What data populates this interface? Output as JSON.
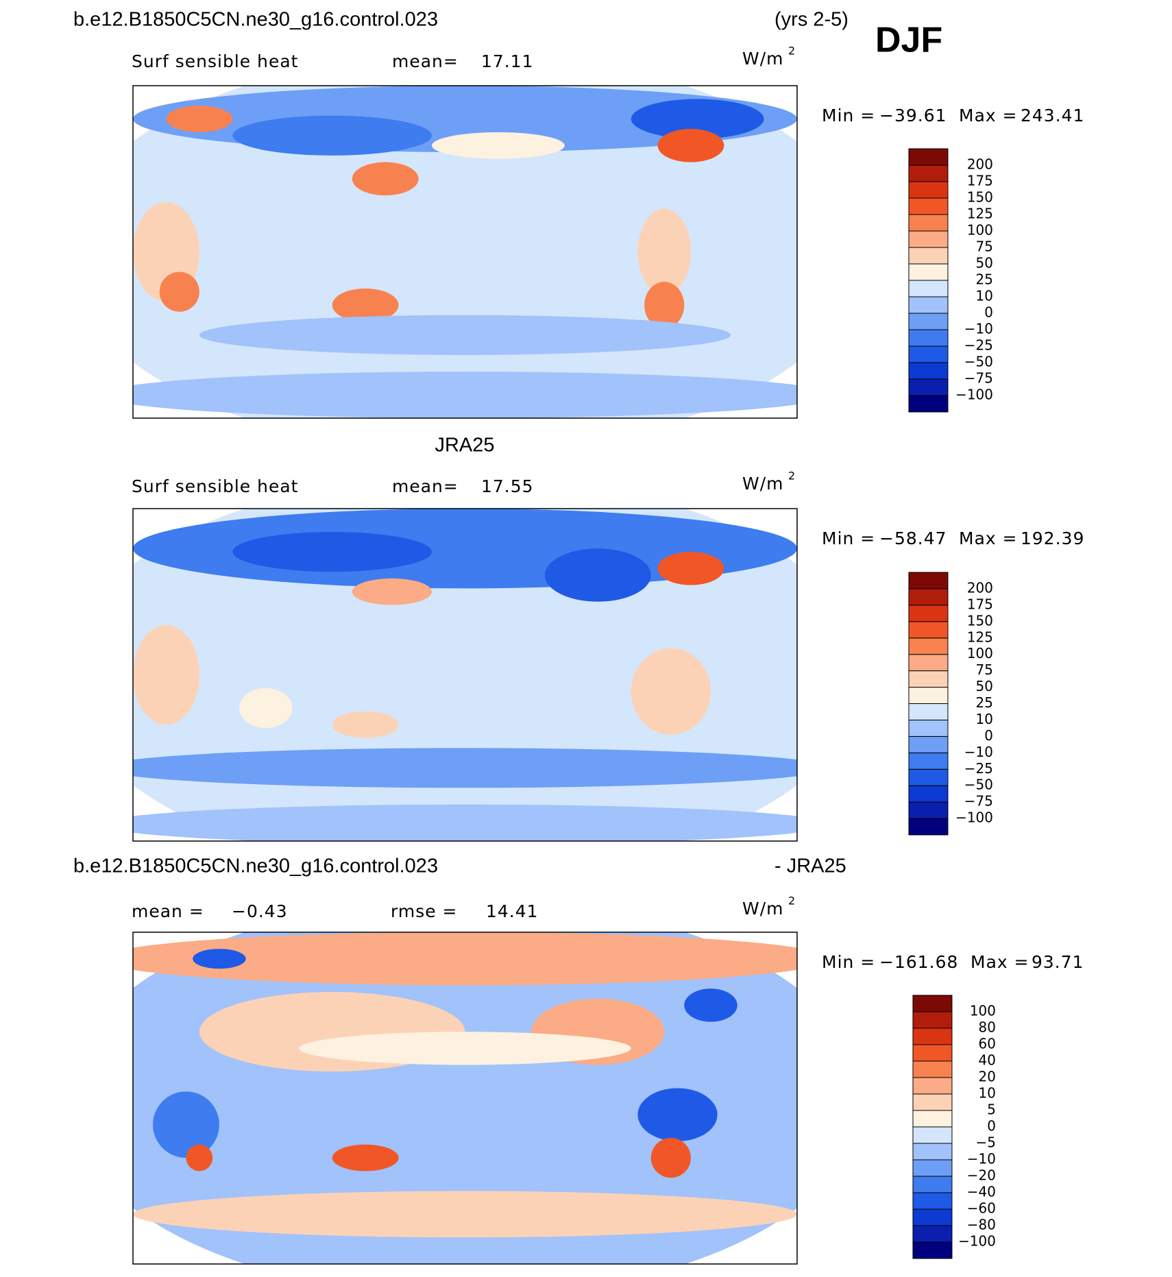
{
  "header": {
    "case": "b.e12.B1850C5CN.ne30_g16.control.023",
    "years": "(yrs 2-5)",
    "season": "DJF"
  },
  "colors": [
    "#00007f",
    "#0a1fae",
    "#0d3ad3",
    "#1f5ae6",
    "#3e7cf0",
    "#6d9ff6",
    "#a1c2fa",
    "#d4e6fb",
    "#fdf1e0",
    "#fcd2b6",
    "#fbab85",
    "#f8824f",
    "#f15726",
    "#da3513",
    "#b21c0a",
    "#7c0903"
  ],
  "panels": [
    {
      "subtitle": "Surf sensible heat",
      "stat1_label": "mean=",
      "stat1": "17.11",
      "units": "W/m",
      "units_sup": "2",
      "min_label": "Min =",
      "min": "−39.61",
      "max_label": "Max =",
      "max": "243.41",
      "levels": [
        "200",
        "175",
        "150",
        "125",
        "100",
        "75",
        "50",
        "25",
        "10",
        "0",
        "−10",
        "−25",
        "−50",
        "−75",
        "−100"
      ]
    },
    {
      "title": "JRA25",
      "subtitle": "Surf sensible heat",
      "stat1_label": "mean=",
      "stat1": "17.55",
      "units": "W/m",
      "units_sup": "2",
      "min_label": "Min =",
      "min": "−58.47",
      "max_label": "Max =",
      "max": "192.39",
      "levels": [
        "200",
        "175",
        "150",
        "125",
        "100",
        "75",
        "50",
        "25",
        "10",
        "0",
        "−10",
        "−25",
        "−50",
        "−75",
        "−100"
      ]
    },
    {
      "title": "b.e12.B1850C5CN.ne30_g16.control.023",
      "title_right": "- JRA25",
      "stat1_label": "mean =",
      "stat1": "−0.43",
      "stat2_label": "rmse =",
      "stat2": "14.41",
      "units": "W/m",
      "units_sup": "2",
      "min_label": "Min =",
      "min": "−161.68",
      "max_label": "Max =",
      "max": "93.71",
      "levels": [
        "100",
        "80",
        "60",
        "40",
        "20",
        "10",
        "5",
        "0",
        "−5",
        "−10",
        "−20",
        "−40",
        "−60",
        "−80",
        "−100"
      ]
    }
  ]
}
